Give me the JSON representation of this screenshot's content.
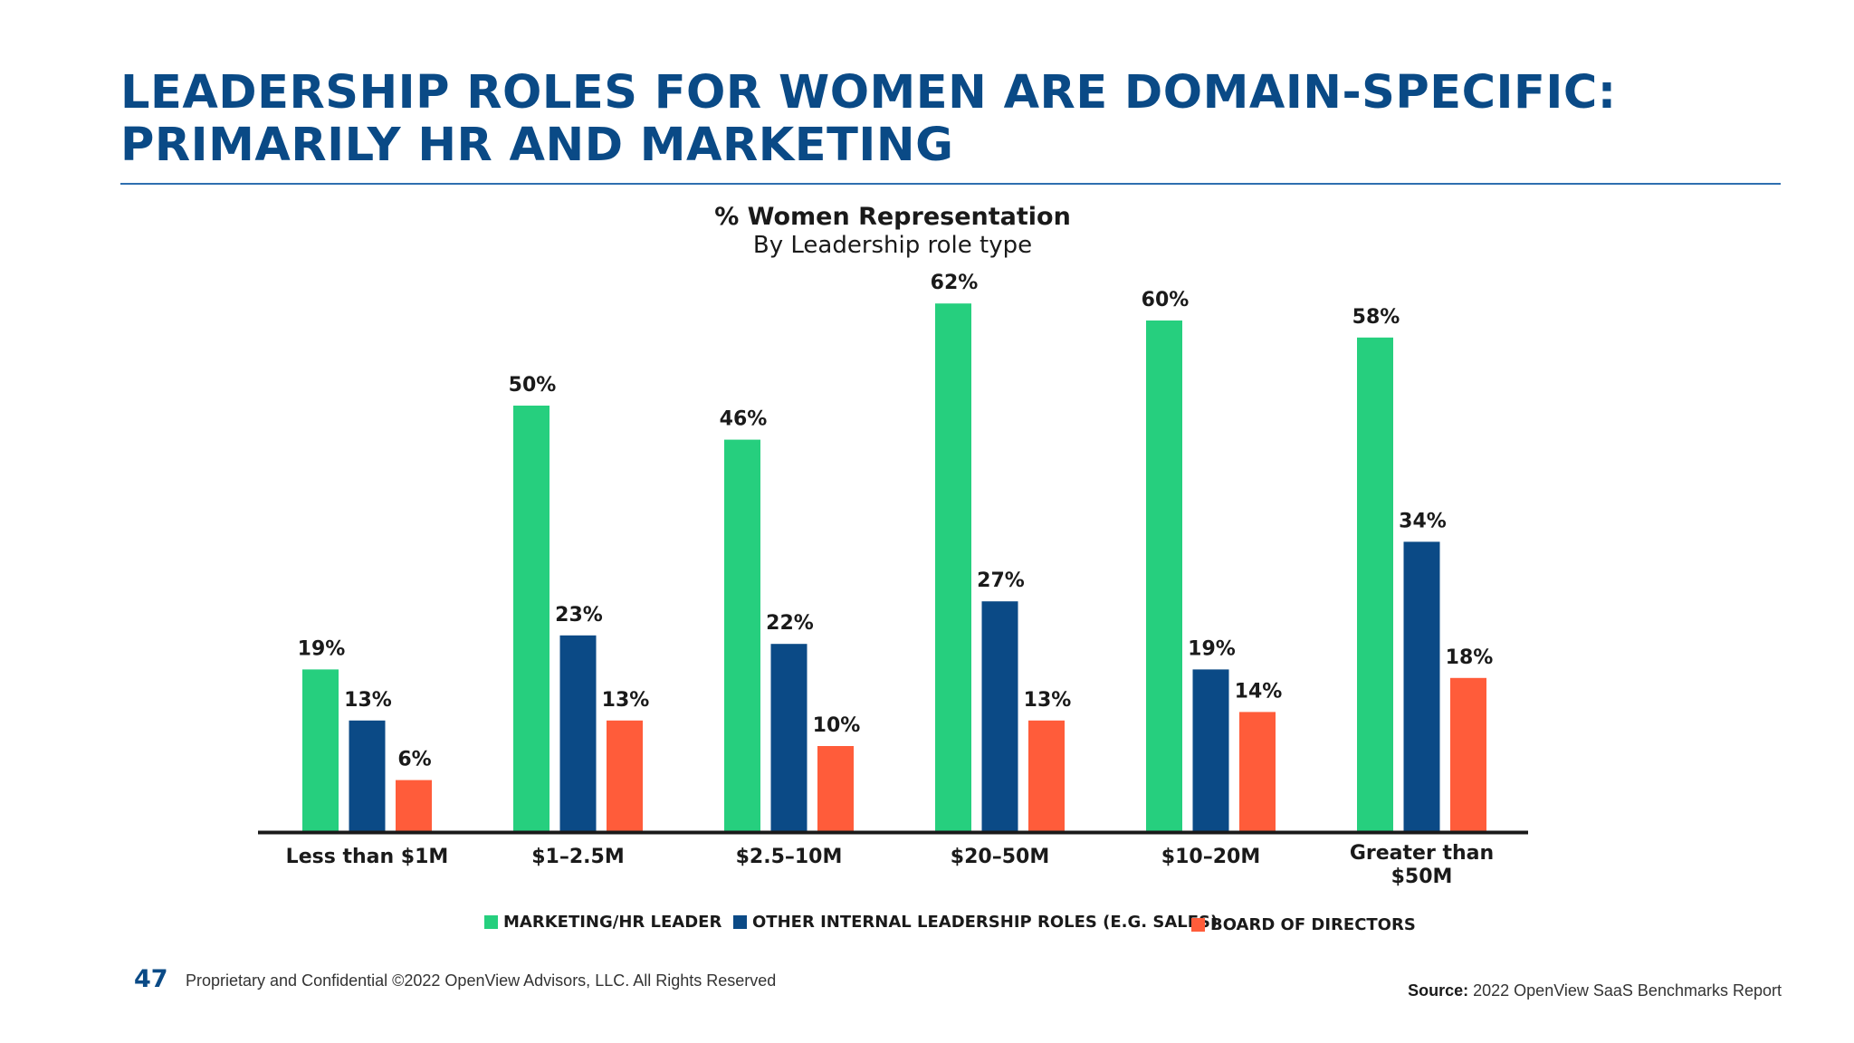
{
  "header": {
    "title_line1": "LEADERSHIP ROLES FOR WOMEN ARE DOMAIN-SPECIFIC:",
    "title_line2": "PRIMARILY HR AND MARKETING"
  },
  "footer": {
    "page_number": "47",
    "copyright": "Proprietary and Confidential ©2022 OpenView Advisors, LLC. All Rights Reserved",
    "source_label": "Source:",
    "source_text": "2022 OpenView SaaS Benchmarks Report"
  },
  "colors": {
    "title": "#0a4a86",
    "marketing_hr": "#26cf7e",
    "other_internal": "#0b4a86",
    "board": "#ff5c3a"
  },
  "chart_data": {
    "type": "bar",
    "title": "% Women Representation",
    "subtitle": "By Leadership role type",
    "categories": [
      "Less than $1M",
      "$1–2.5M",
      "$2.5–10M",
      "$20–50M",
      "$10–20M",
      "Greater than $50M"
    ],
    "series": [
      {
        "name": "MARKETING/HR LEADER",
        "color": "#26cf7e",
        "values": [
          19,
          50,
          46,
          62,
          60,
          58
        ]
      },
      {
        "name": "OTHER INTERNAL LEADERSHIP ROLES (E.G. SALES)",
        "color": "#0b4a86",
        "values": [
          13,
          23,
          22,
          27,
          19,
          34
        ]
      },
      {
        "name": "BOARD OF DIRECTORS",
        "color": "#ff5c3a",
        "values": [
          6,
          13,
          10,
          13,
          14,
          18
        ]
      }
    ],
    "value_suffix": "%",
    "ylim": [
      0,
      70
    ],
    "grid": false,
    "legend_position": "bottom"
  }
}
